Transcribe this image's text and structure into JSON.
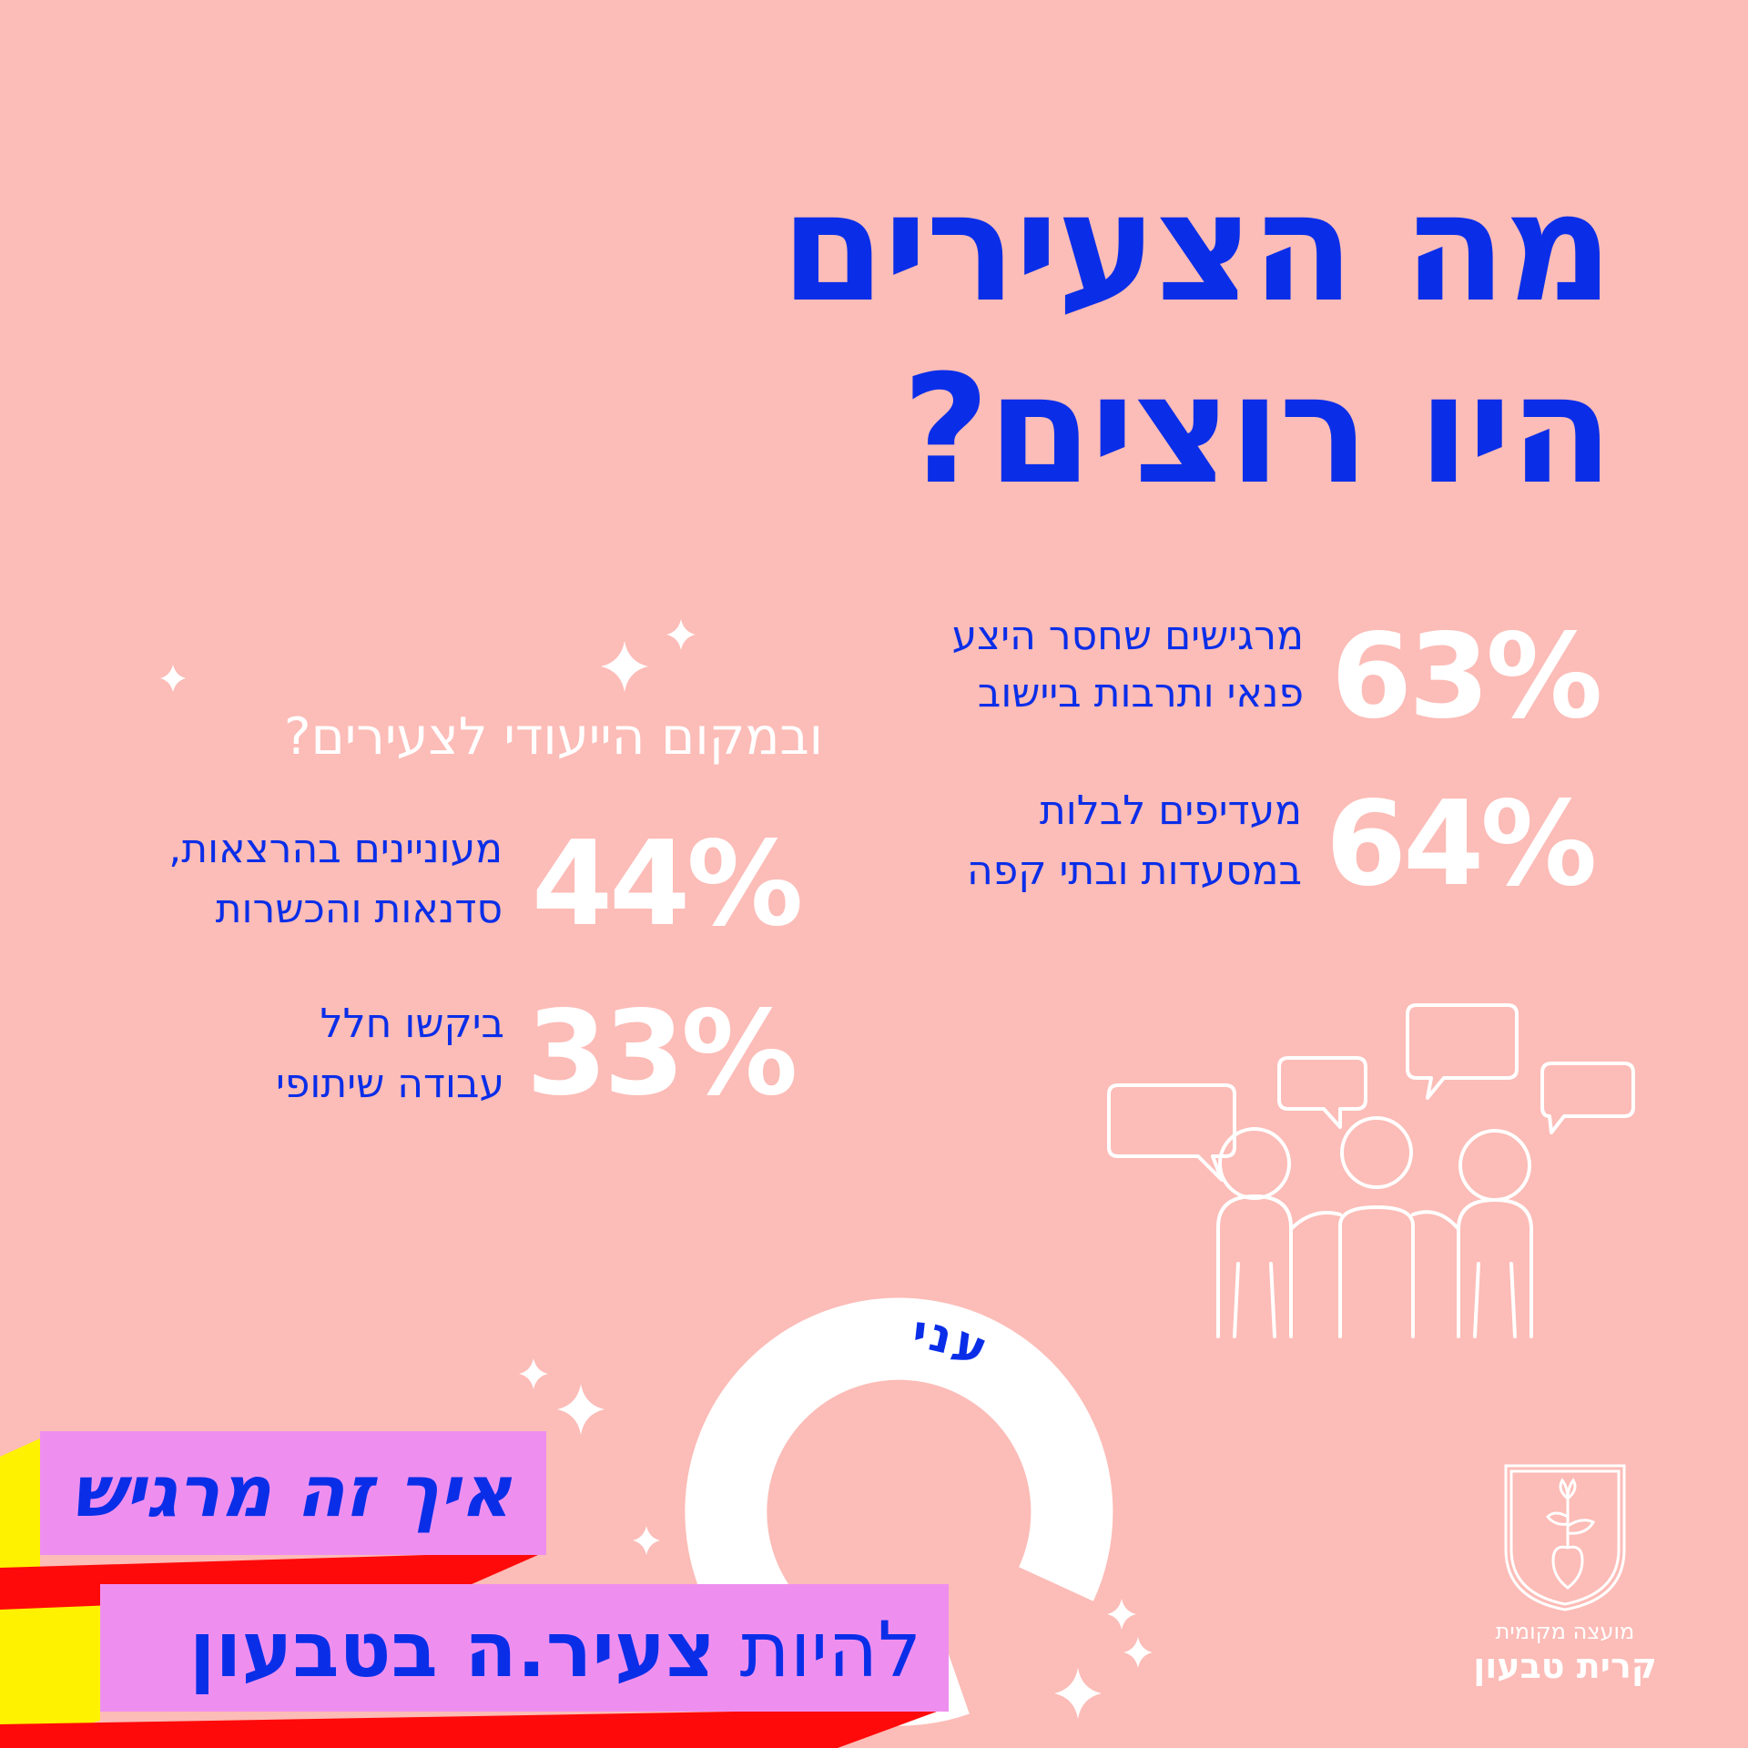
{
  "colors": {
    "background": "#fcbcb7",
    "primary_blue": "#0a2ee8",
    "white": "#ffffff",
    "banner_pink": "#ee8ff0",
    "banner_red": "#ff0a0a",
    "banner_yellow": "#fff200"
  },
  "title": {
    "line1": "מה הצעירים",
    "line2": "היו רוצים?"
  },
  "stats_right": [
    {
      "value": "63%",
      "line1": "מרגישים שחסר היצע",
      "line2": "פנאי ותרבות ביישוב"
    },
    {
      "value": "64%",
      "line1": "מעדיפים לבלות",
      "line2": "במסעדות ובתי קפה"
    }
  ],
  "section_left": {
    "title": "ובמקום הייעודי לצעירים?",
    "stats": [
      {
        "value": "44%",
        "line1": "מעוניינים בהרצאות,",
        "line2": "סדנאות והכשרות"
      },
      {
        "value": "33%",
        "line1": "ביקשו חלל",
        "line2": "עבודה שיתופי"
      }
    ]
  },
  "illustration": {
    "icon": "people-speech-bubbles-icon"
  },
  "circle_badge": {
    "text": "עניתם כבר על סקר הצעירים?",
    "icon": "circular-text-badge"
  },
  "banner": {
    "line1": "איך זה מרגיש",
    "line2_prefix": "להיות",
    "line2_bold": "צעיר.ה בטבעון"
  },
  "council": {
    "icon": "council-emblem-icon",
    "label_small": "מועצה מקומית",
    "label_large": "קרית טבעון"
  }
}
